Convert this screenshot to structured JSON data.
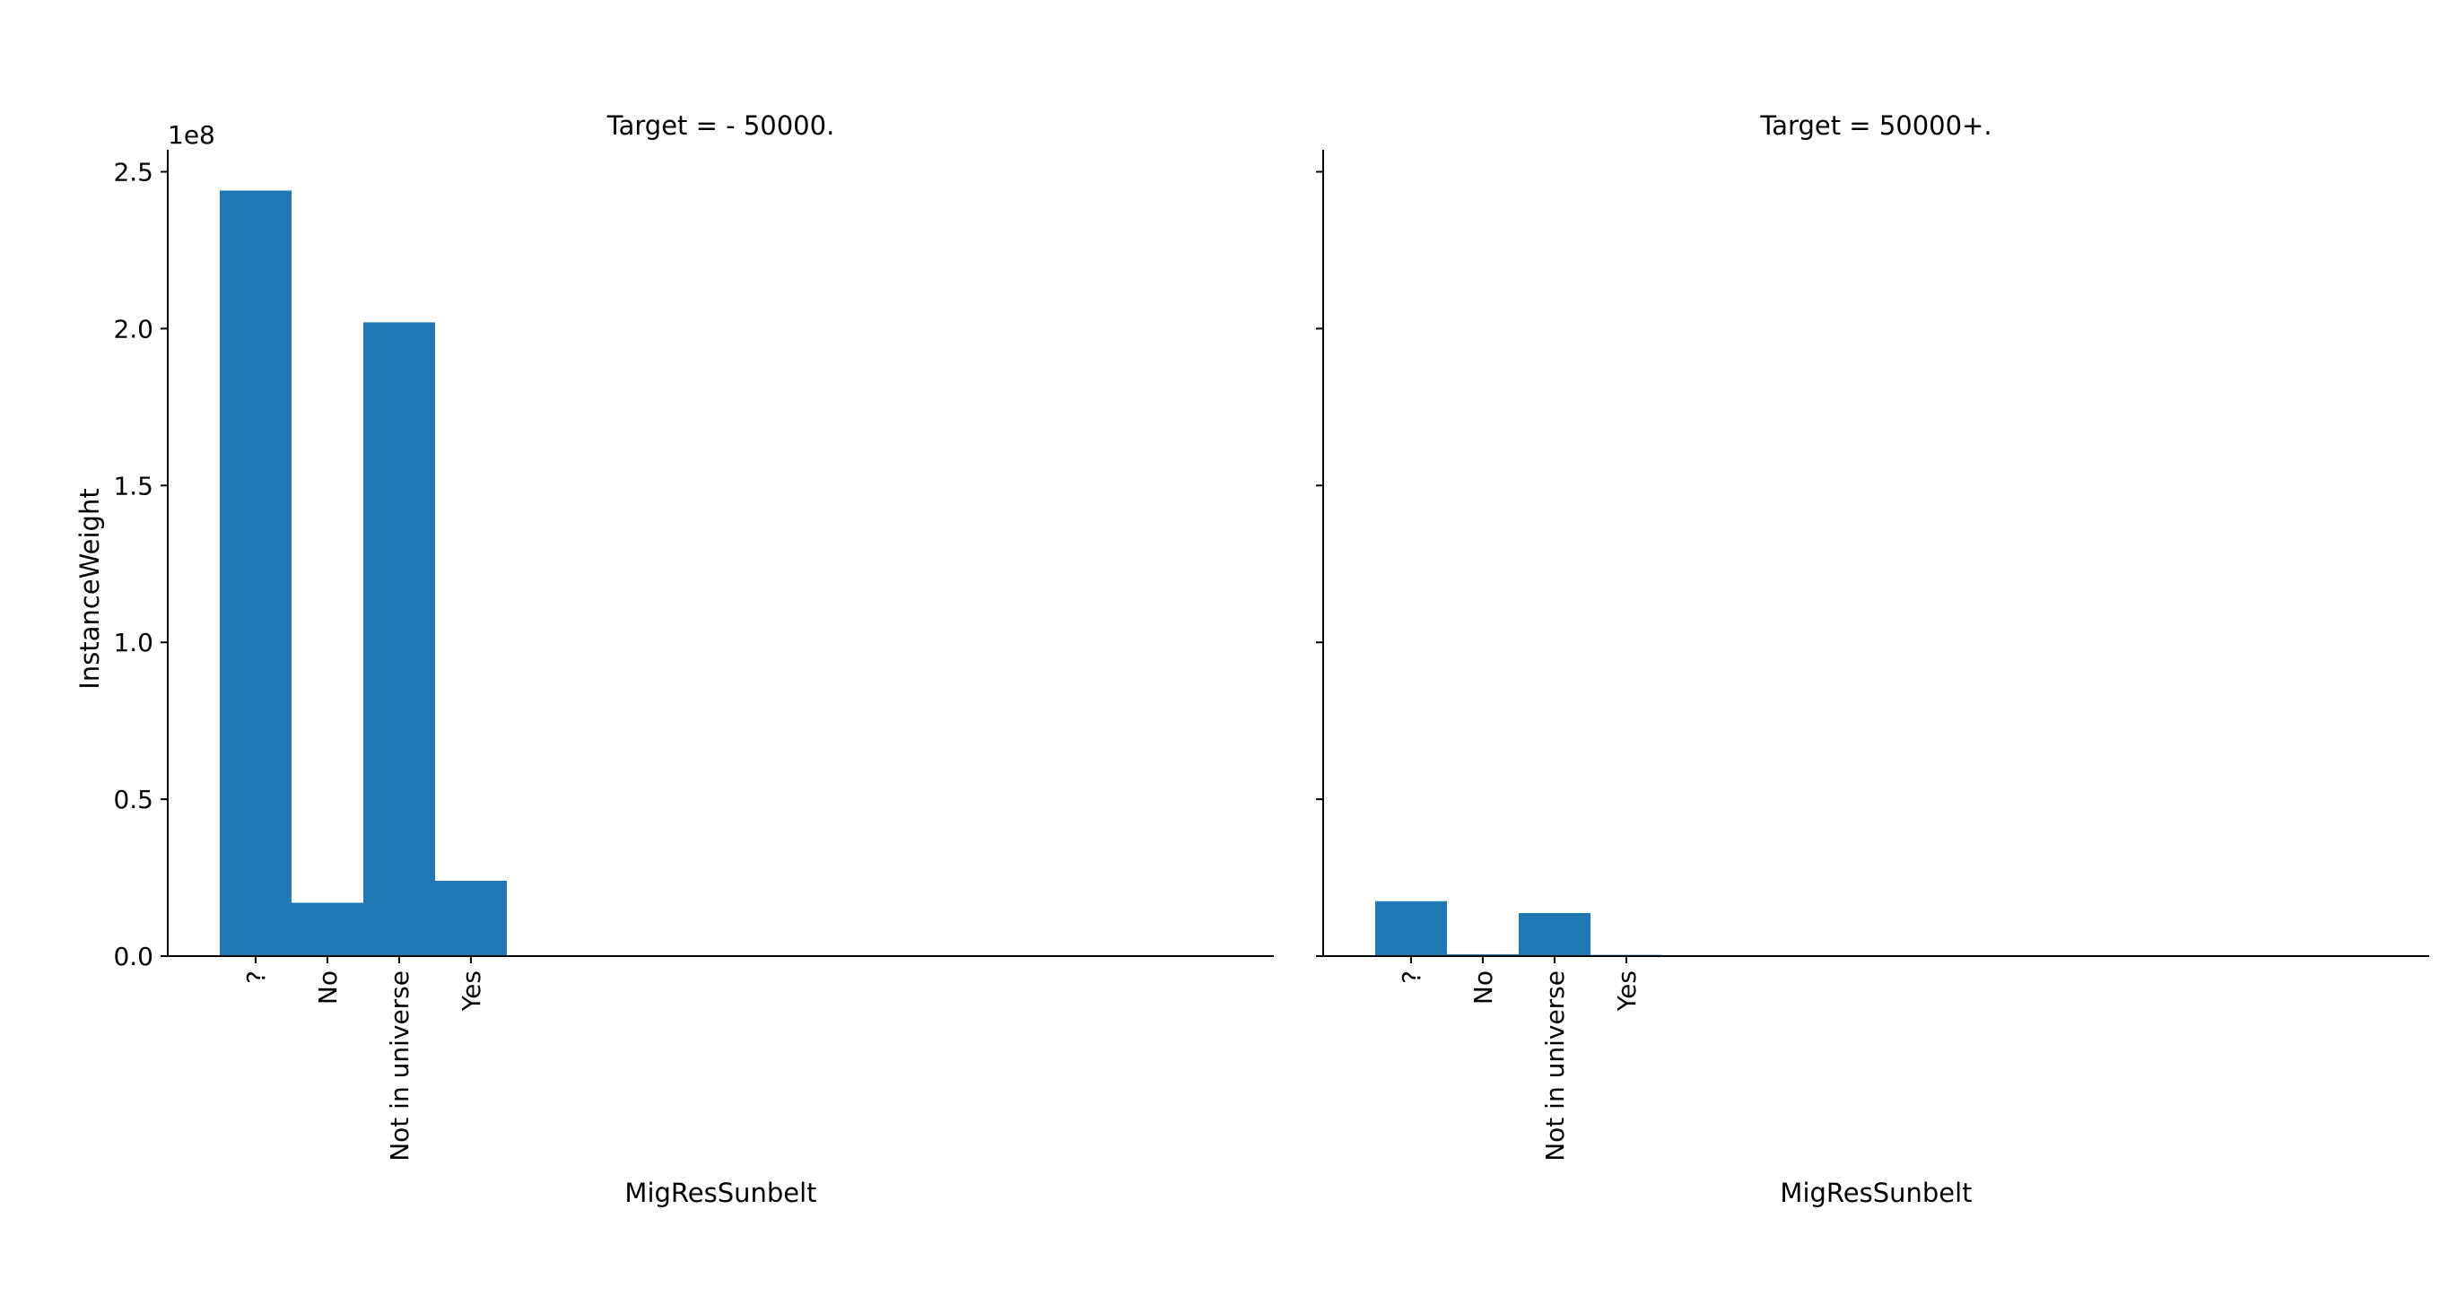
{
  "chart_data": [
    {
      "type": "bar",
      "title": "Target =  - 50000.",
      "xlabel": "MigResSunbelt",
      "ylabel": "InstanceWeight",
      "offset_label": "1e8",
      "categories": [
        "?",
        "No",
        "Not in universe",
        "Yes"
      ],
      "values": [
        2.44,
        0.17,
        2.02,
        0.24
      ],
      "ylim": [
        0,
        2.57
      ],
      "yticks": [
        0.0,
        0.5,
        1.0,
        1.5,
        2.0,
        2.5
      ],
      "ytick_labels": [
        "0.0",
        "0.5",
        "1.0",
        "1.5",
        "2.0",
        "2.5"
      ],
      "grid": false,
      "color": "#1f77b4"
    },
    {
      "type": "bar",
      "title": "Target =  50000+.",
      "xlabel": "MigResSunbelt",
      "ylabel": "",
      "categories": [
        "?",
        "No",
        "Not in universe",
        "Yes"
      ],
      "values": [
        0.175,
        0.006,
        0.137,
        0.004
      ],
      "ylim": [
        0,
        2.57
      ],
      "yticks": [
        0.0,
        0.5,
        1.0,
        1.5,
        2.0,
        2.5
      ],
      "ytick_labels": [
        "",
        "",
        "",
        "",
        "",
        ""
      ],
      "grid": false,
      "color": "#1f77b4"
    }
  ]
}
